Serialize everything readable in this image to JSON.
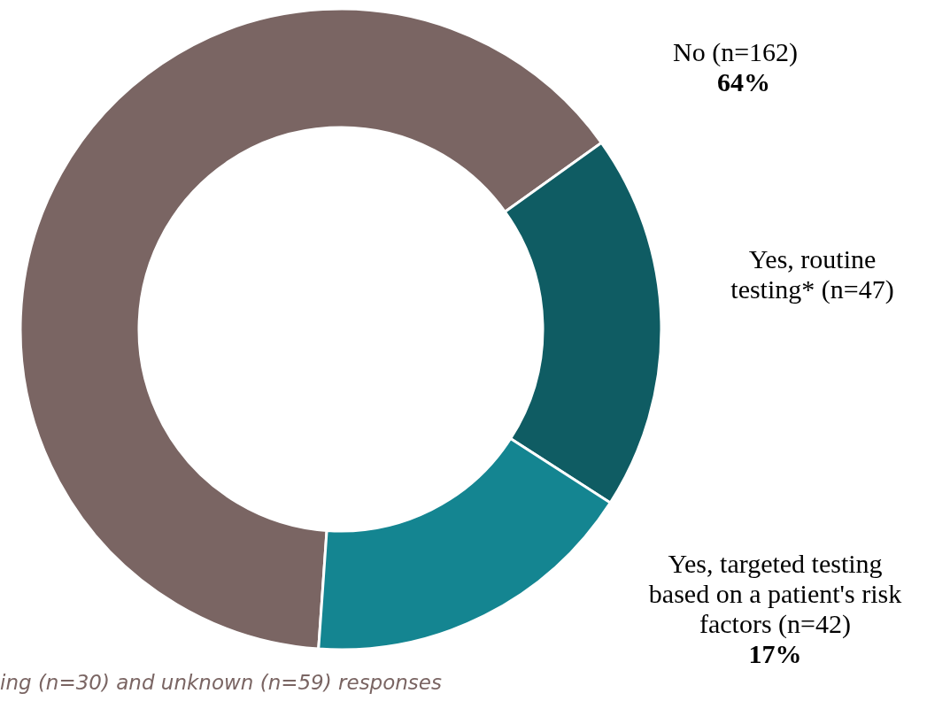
{
  "chart_data": {
    "type": "donut",
    "categories": [
      "No (n=162)",
      "Yes, routine testing* (n=47)",
      "Yes, targeted testing based on a patient's risk factors (n=42)"
    ],
    "values": [
      64,
      19,
      17
    ],
    "colors": [
      "#7a6563",
      "#0f5c63",
      "#148591"
    ],
    "value_labels": [
      "64%",
      null,
      "17%"
    ],
    "annotations": [
      "ing (n=30) and unknown (n=59) responses"
    ]
  }
}
